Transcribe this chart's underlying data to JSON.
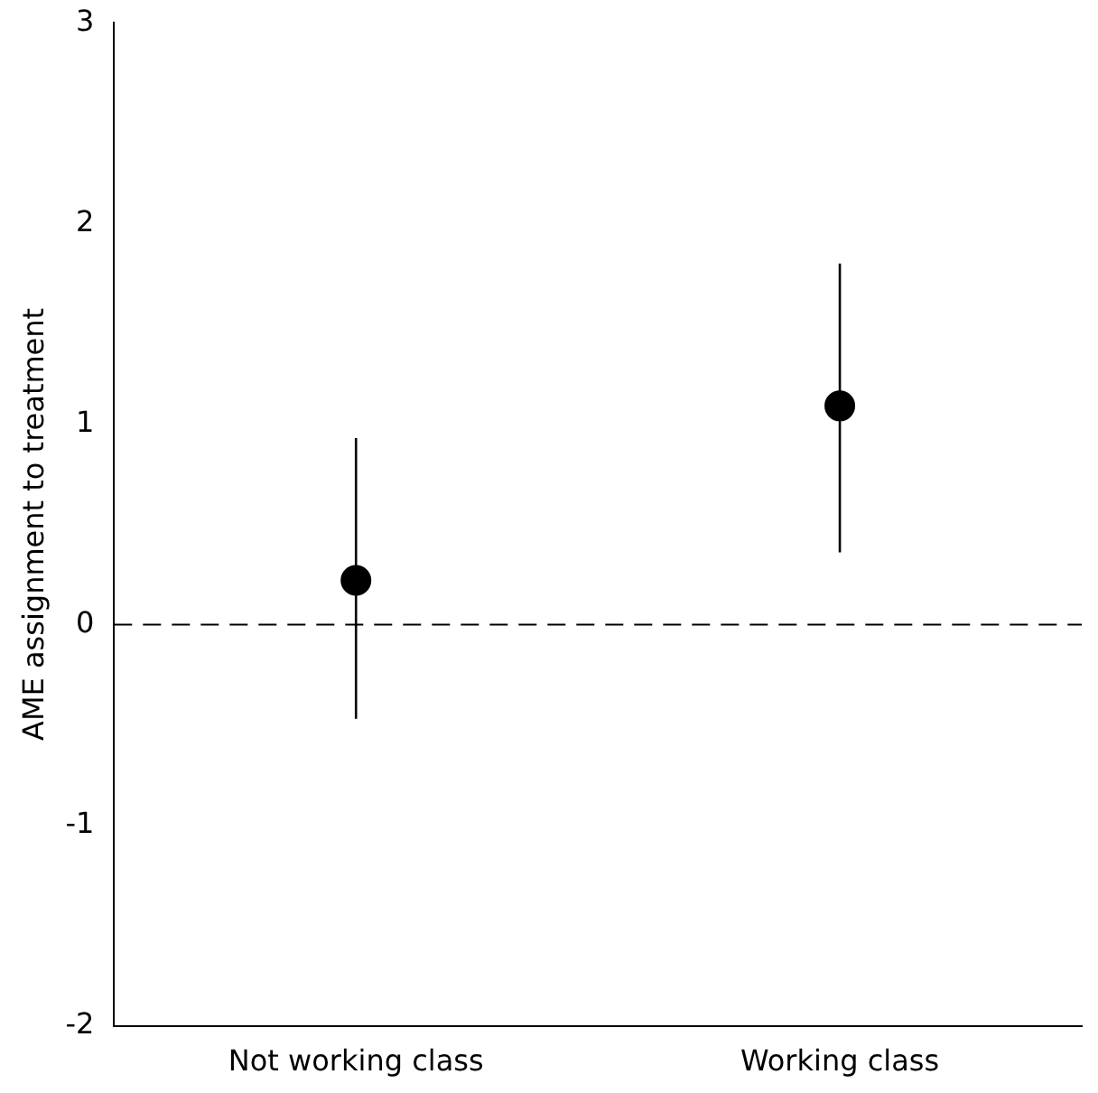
{
  "chart_data": {
    "type": "scatter",
    "ylabel": "AME assignment to treatment",
    "categories": [
      "Not working class",
      "Working class"
    ],
    "series": [
      {
        "color": "#000000",
        "values": [
          0.22,
          1.09
        ],
        "errors": [
          [
            -0.47,
            0.93
          ],
          [
            0.36,
            1.8
          ]
        ]
      }
    ],
    "ylim": [
      -2,
      3
    ],
    "yticks": [
      -2,
      -1,
      0,
      1,
      2,
      3
    ],
    "grid": false,
    "legend": false,
    "marker": "circle",
    "ref_lines": [
      {
        "axis": "y",
        "value": 0,
        "color": "#000000",
        "line_style": "dashed"
      }
    ]
  }
}
